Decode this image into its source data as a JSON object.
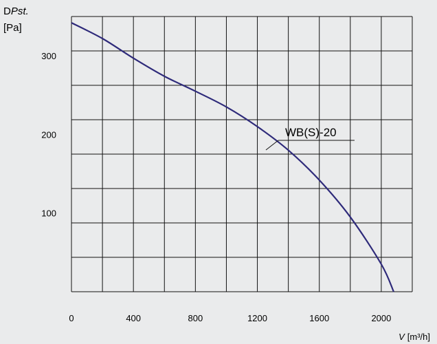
{
  "chart_data": {
    "type": "line",
    "ylabel": {
      "prefix": "D",
      "italic": "Pst.",
      "unit": "[Pa]"
    },
    "xlabel": {
      "italic": "V",
      "unit": "[m³/h]"
    },
    "xlim": [
      0,
      2200
    ],
    "ylim": [
      0,
      350
    ],
    "x_ticks": [
      "0",
      "400",
      "800",
      "1200",
      "1600",
      "2000"
    ],
    "y_ticks": [
      "100",
      "200",
      "300"
    ],
    "grid": true,
    "series": [
      {
        "name": "WB(S)-20",
        "color": "#2e2a7a",
        "x": [
          0,
          200,
          400,
          600,
          800,
          1000,
          1200,
          1400,
          1600,
          1800,
          2000,
          2080
        ],
        "y": [
          342,
          322,
          297,
          274,
          255,
          235,
          210,
          180,
          142,
          95,
          35,
          0
        ]
      }
    ]
  }
}
